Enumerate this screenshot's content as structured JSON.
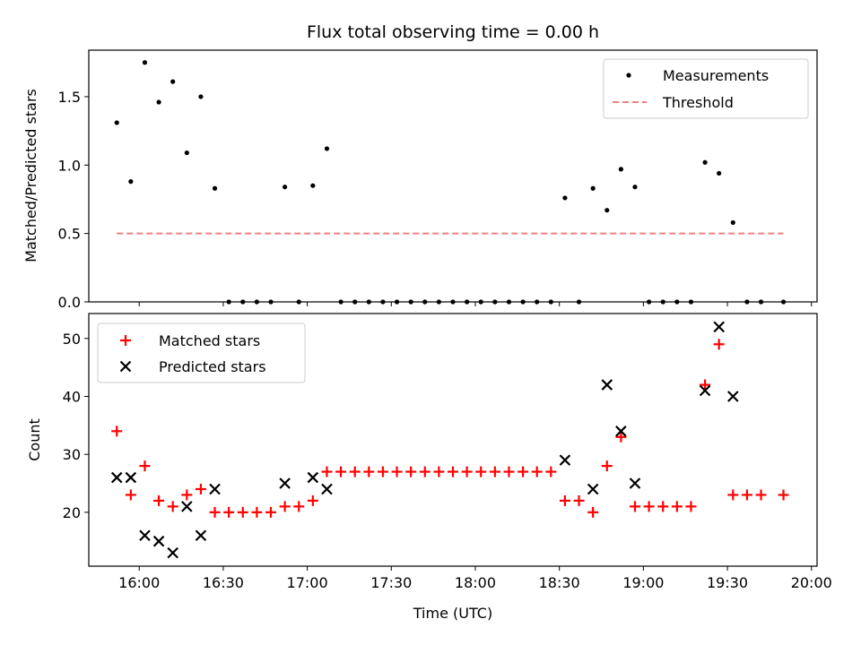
{
  "chart_data": [
    {
      "type": "scatter",
      "title": "Flux total observing time = 0.00 h",
      "xlabel": "",
      "ylabel": "Matched/Predicted stars",
      "x_unit": "time (UTC)",
      "xlim": [
        "15:42",
        "20:02"
      ],
      "ylim": [
        0,
        1.84
      ],
      "yticks": [
        "0.0",
        "0.5",
        "1.0",
        "1.5"
      ],
      "show_xtick_labels": false,
      "legend_position": "top-right",
      "series": [
        {
          "name": "Measurements",
          "style": "dot",
          "color": "#000000",
          "points": [
            [
              "15:52",
              1.31
            ],
            [
              "15:57",
              0.88
            ],
            [
              "16:02",
              1.75
            ],
            [
              "16:07",
              1.46
            ],
            [
              "16:12",
              1.61
            ],
            [
              "16:17",
              1.09
            ],
            [
              "16:22",
              1.5
            ],
            [
              "16:27",
              0.83
            ],
            [
              "16:32",
              0.0
            ],
            [
              "16:37",
              0.0
            ],
            [
              "16:42",
              0.0
            ],
            [
              "16:47",
              0.0
            ],
            [
              "16:52",
              0.84
            ],
            [
              "16:57",
              0.0
            ],
            [
              "17:02",
              0.85
            ],
            [
              "17:07",
              1.12
            ],
            [
              "17:12",
              0.0
            ],
            [
              "17:17",
              0.0
            ],
            [
              "17:22",
              0.0
            ],
            [
              "17:27",
              0.0
            ],
            [
              "17:32",
              0.0
            ],
            [
              "17:37",
              0.0
            ],
            [
              "17:42",
              0.0
            ],
            [
              "17:47",
              0.0
            ],
            [
              "17:52",
              0.0
            ],
            [
              "17:57",
              0.0
            ],
            [
              "18:02",
              0.0
            ],
            [
              "18:07",
              0.0
            ],
            [
              "18:12",
              0.0
            ],
            [
              "18:17",
              0.0
            ],
            [
              "18:22",
              0.0
            ],
            [
              "18:27",
              0.0
            ],
            [
              "18:32",
              0.76
            ],
            [
              "18:37",
              0.0
            ],
            [
              "18:42",
              0.83
            ],
            [
              "18:47",
              0.67
            ],
            [
              "18:52",
              0.97
            ],
            [
              "18:57",
              0.84
            ],
            [
              "19:02",
              0.0
            ],
            [
              "19:07",
              0.0
            ],
            [
              "19:12",
              0.0
            ],
            [
              "19:17",
              0.0
            ],
            [
              "19:22",
              1.02
            ],
            [
              "19:27",
              0.94
            ],
            [
              "19:32",
              0.58
            ],
            [
              "19:37",
              0.0
            ],
            [
              "19:42",
              0.0
            ],
            [
              "19:50",
              0.0
            ]
          ]
        },
        {
          "name": "Threshold",
          "style": "dashed-line",
          "color": "#f08080",
          "points": [
            [
              "15:52",
              0.5
            ],
            [
              "19:50",
              0.5
            ]
          ]
        }
      ]
    },
    {
      "type": "scatter",
      "title": "",
      "xlabel": "Time (UTC)",
      "ylabel": "Count",
      "x_unit": "time (UTC)",
      "xlim": [
        "15:42",
        "20:02"
      ],
      "ylim": [
        10.7,
        54.3
      ],
      "yticks": [
        "20",
        "30",
        "40",
        "50"
      ],
      "xticks": [
        "16:00",
        "16:30",
        "17:00",
        "17:30",
        "18:00",
        "18:30",
        "19:00",
        "19:30",
        "20:00"
      ],
      "show_xtick_labels": true,
      "legend_position": "top-left",
      "series": [
        {
          "name": "Matched stars",
          "style": "plus",
          "color": "#ff0000",
          "points": [
            [
              "15:52",
              34
            ],
            [
              "15:57",
              23
            ],
            [
              "16:02",
              28
            ],
            [
              "16:07",
              22
            ],
            [
              "16:12",
              21
            ],
            [
              "16:17",
              23
            ],
            [
              "16:22",
              24
            ],
            [
              "16:27",
              20
            ],
            [
              "16:32",
              20
            ],
            [
              "16:37",
              20
            ],
            [
              "16:42",
              20
            ],
            [
              "16:47",
              20
            ],
            [
              "16:52",
              21
            ],
            [
              "16:57",
              21
            ],
            [
              "17:02",
              22
            ],
            [
              "17:07",
              27
            ],
            [
              "17:12",
              27
            ],
            [
              "17:17",
              27
            ],
            [
              "17:22",
              27
            ],
            [
              "17:27",
              27
            ],
            [
              "17:32",
              27
            ],
            [
              "17:37",
              27
            ],
            [
              "17:42",
              27
            ],
            [
              "17:47",
              27
            ],
            [
              "17:52",
              27
            ],
            [
              "17:57",
              27
            ],
            [
              "18:02",
              27
            ],
            [
              "18:07",
              27
            ],
            [
              "18:12",
              27
            ],
            [
              "18:17",
              27
            ],
            [
              "18:22",
              27
            ],
            [
              "18:27",
              27
            ],
            [
              "18:32",
              22
            ],
            [
              "18:37",
              22
            ],
            [
              "18:42",
              20
            ],
            [
              "18:47",
              28
            ],
            [
              "18:52",
              33
            ],
            [
              "18:57",
              21
            ],
            [
              "19:02",
              21
            ],
            [
              "19:07",
              21
            ],
            [
              "19:12",
              21
            ],
            [
              "19:17",
              21
            ],
            [
              "19:22",
              42
            ],
            [
              "19:27",
              49
            ],
            [
              "19:32",
              23
            ],
            [
              "19:37",
              23
            ],
            [
              "19:42",
              23
            ],
            [
              "19:50",
              23
            ]
          ]
        },
        {
          "name": "Predicted stars",
          "style": "x",
          "color": "#000000",
          "points": [
            [
              "15:52",
              26
            ],
            [
              "15:57",
              26
            ],
            [
              "16:02",
              16
            ],
            [
              "16:07",
              15
            ],
            [
              "16:12",
              13
            ],
            [
              "16:17",
              21
            ],
            [
              "16:22",
              16
            ],
            [
              "16:27",
              24
            ],
            [
              "16:52",
              25
            ],
            [
              "17:02",
              26
            ],
            [
              "17:07",
              24
            ],
            [
              "18:32",
              29
            ],
            [
              "18:42",
              24
            ],
            [
              "18:47",
              42
            ],
            [
              "18:52",
              34
            ],
            [
              "18:57",
              25
            ],
            [
              "19:22",
              41
            ],
            [
              "19:27",
              52
            ],
            [
              "19:32",
              40
            ]
          ]
        }
      ]
    }
  ]
}
